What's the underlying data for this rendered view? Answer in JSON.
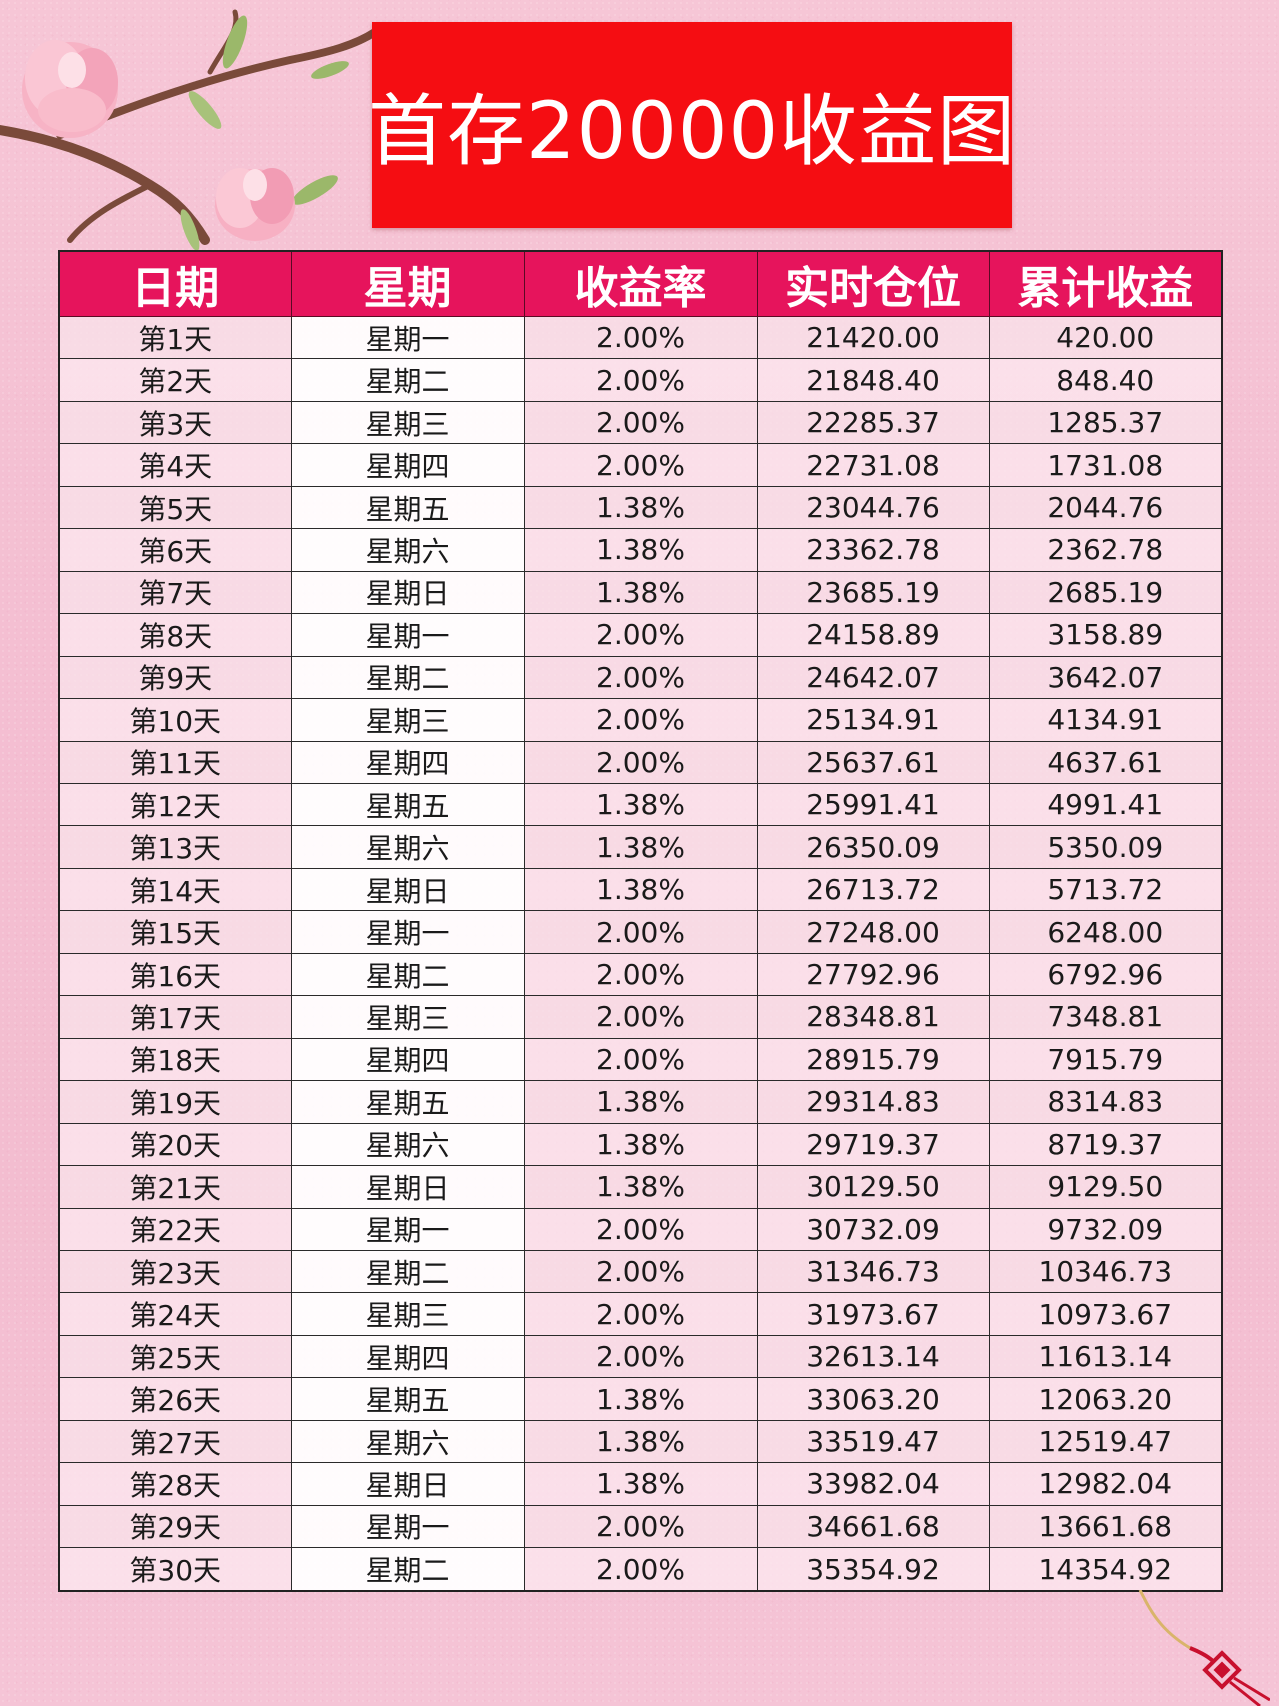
{
  "title": "首存20000收益图",
  "colors": {
    "banner": "#f50d12",
    "header": "#e6145c",
    "background": "#f4bfd2"
  },
  "decorations": {
    "top_left": "magnolia-branch-icon",
    "bottom_right": "chinese-knot-icon"
  },
  "table": {
    "headers": [
      "日期",
      "星期",
      "收益率",
      "实时仓位",
      "累计收益"
    ],
    "rows": [
      [
        "第1天",
        "星期一",
        "2.00%",
        "21420.00",
        "420.00"
      ],
      [
        "第2天",
        "星期二",
        "2.00%",
        "21848.40",
        "848.40"
      ],
      [
        "第3天",
        "星期三",
        "2.00%",
        "22285.37",
        "1285.37"
      ],
      [
        "第4天",
        "星期四",
        "2.00%",
        "22731.08",
        "1731.08"
      ],
      [
        "第5天",
        "星期五",
        "1.38%",
        "23044.76",
        "2044.76"
      ],
      [
        "第6天",
        "星期六",
        "1.38%",
        "23362.78",
        "2362.78"
      ],
      [
        "第7天",
        "星期日",
        "1.38%",
        "23685.19",
        "2685.19"
      ],
      [
        "第8天",
        "星期一",
        "2.00%",
        "24158.89",
        "3158.89"
      ],
      [
        "第9天",
        "星期二",
        "2.00%",
        "24642.07",
        "3642.07"
      ],
      [
        "第10天",
        "星期三",
        "2.00%",
        "25134.91",
        "4134.91"
      ],
      [
        "第11天",
        "星期四",
        "2.00%",
        "25637.61",
        "4637.61"
      ],
      [
        "第12天",
        "星期五",
        "1.38%",
        "25991.41",
        "4991.41"
      ],
      [
        "第13天",
        "星期六",
        "1.38%",
        "26350.09",
        "5350.09"
      ],
      [
        "第14天",
        "星期日",
        "1.38%",
        "26713.72",
        "5713.72"
      ],
      [
        "第15天",
        "星期一",
        "2.00%",
        "27248.00",
        "6248.00"
      ],
      [
        "第16天",
        "星期二",
        "2.00%",
        "27792.96",
        "6792.96"
      ],
      [
        "第17天",
        "星期三",
        "2.00%",
        "28348.81",
        "7348.81"
      ],
      [
        "第18天",
        "星期四",
        "2.00%",
        "28915.79",
        "7915.79"
      ],
      [
        "第19天",
        "星期五",
        "1.38%",
        "29314.83",
        "8314.83"
      ],
      [
        "第20天",
        "星期六",
        "1.38%",
        "29719.37",
        "8719.37"
      ],
      [
        "第21天",
        "星期日",
        "1.38%",
        "30129.50",
        "9129.50"
      ],
      [
        "第22天",
        "星期一",
        "2.00%",
        "30732.09",
        "9732.09"
      ],
      [
        "第23天",
        "星期二",
        "2.00%",
        "31346.73",
        "10346.73"
      ],
      [
        "第24天",
        "星期三",
        "2.00%",
        "31973.67",
        "10973.67"
      ],
      [
        "第25天",
        "星期四",
        "2.00%",
        "32613.14",
        "11613.14"
      ],
      [
        "第26天",
        "星期五",
        "1.38%",
        "33063.20",
        "12063.20"
      ],
      [
        "第27天",
        "星期六",
        "1.38%",
        "33519.47",
        "12519.47"
      ],
      [
        "第28天",
        "星期日",
        "1.38%",
        "33982.04",
        "12982.04"
      ],
      [
        "第29天",
        "星期一",
        "2.00%",
        "34661.68",
        "13661.68"
      ],
      [
        "第30天",
        "星期二",
        "2.00%",
        "35354.92",
        "14354.92"
      ]
    ]
  }
}
